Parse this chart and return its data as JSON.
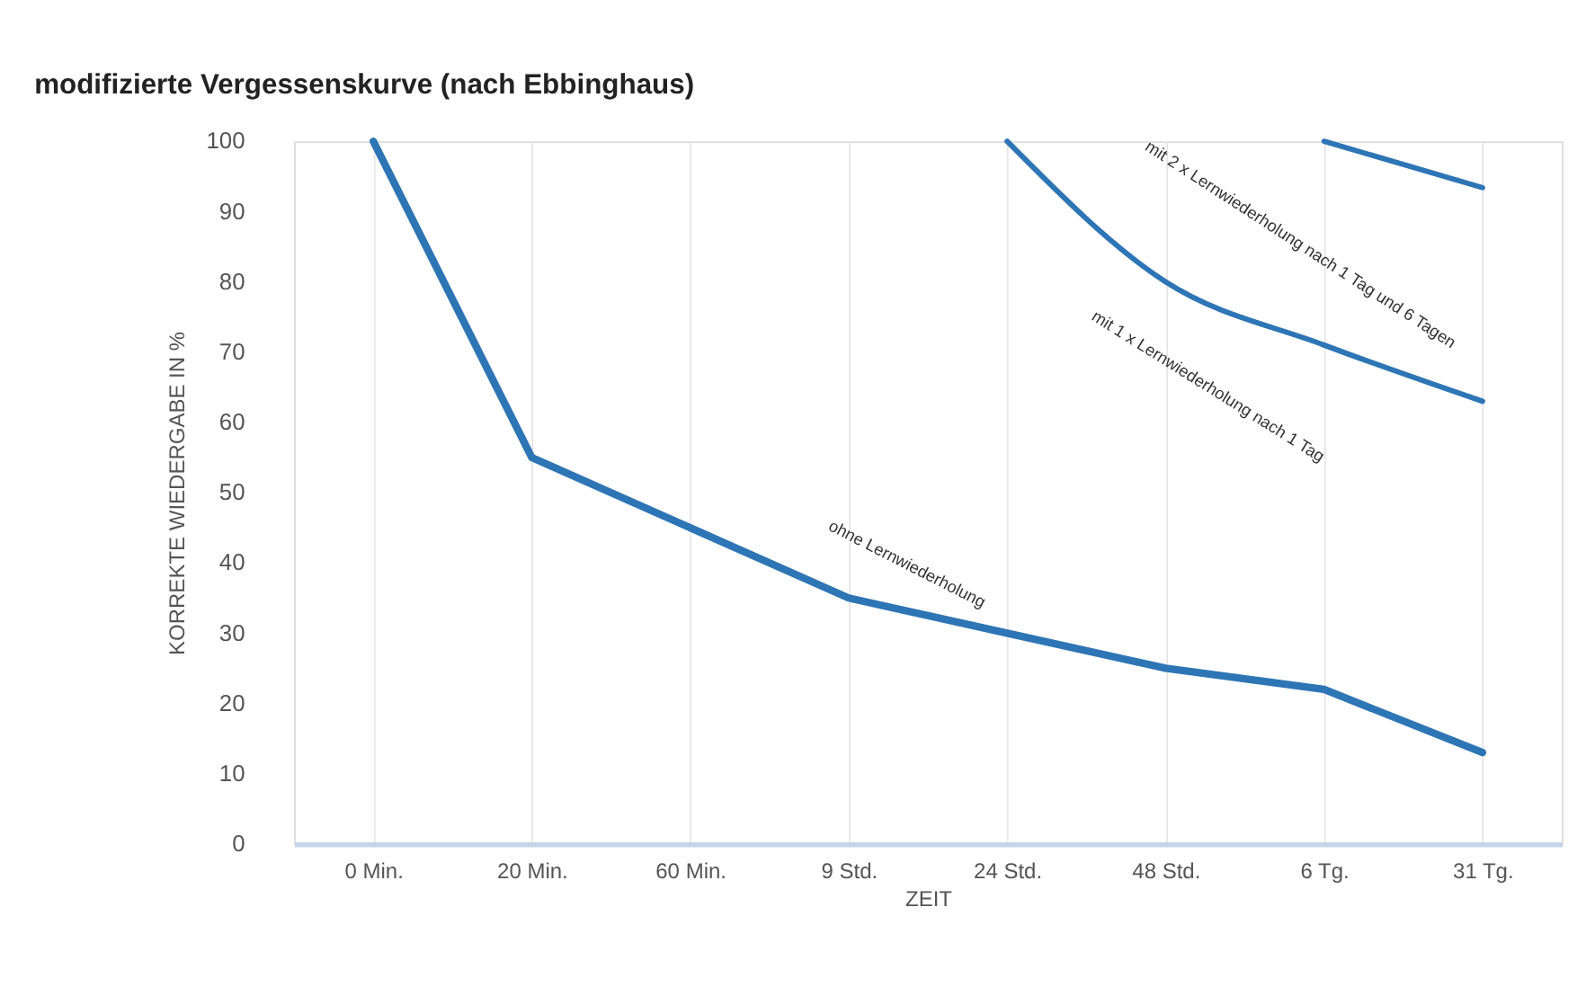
{
  "chart_data": {
    "type": "line",
    "title": "modifizierte Vergessenskurve (nach Ebbinghaus)",
    "xlabel": "ZEIT",
    "ylabel": "KORREKTE WIEDERGABE IN %",
    "categories": [
      "0 Min.",
      "20 Min.",
      "60 Min.",
      "9 Std.",
      "24 Std.",
      "48 Std.",
      "6 Tg.",
      "31 Tg."
    ],
    "ylim": [
      0,
      100
    ],
    "yticks": [
      0,
      10,
      20,
      30,
      40,
      50,
      60,
      70,
      80,
      90,
      100
    ],
    "grid": "x",
    "line_style": "solid",
    "series": [
      {
        "name": "ohne Lernwiederholung",
        "color": "#2e75b6",
        "values": [
          100,
          55,
          45,
          35,
          30,
          25,
          22,
          13
        ]
      },
      {
        "name": "mit 1 x Lernwiederholung nach 1 Tag",
        "color": "#2e75b6",
        "values": [
          null,
          null,
          null,
          null,
          100,
          80,
          71,
          63
        ]
      },
      {
        "name": "mit 2 x Lernwiederholung nach 1 Tag und 6 Tagen",
        "color": "#2e75b6",
        "values": [
          null,
          null,
          null,
          null,
          null,
          null,
          100,
          93.4
        ]
      }
    ]
  }
}
